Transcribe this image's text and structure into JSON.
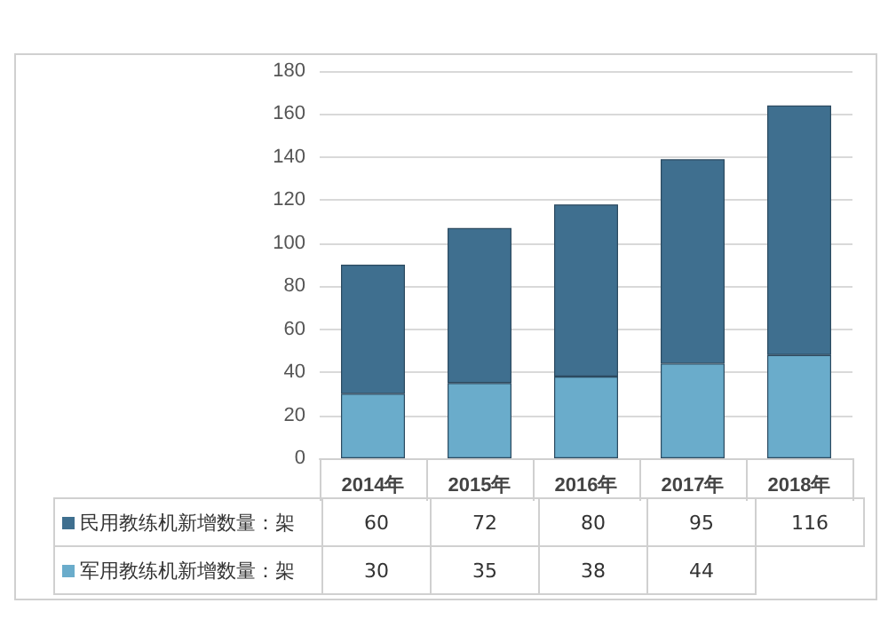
{
  "chart_data": {
    "type": "bar",
    "stacked": true,
    "categories": [
      "2014年",
      "2015年",
      "2016年",
      "2017年",
      "2018年"
    ],
    "series": [
      {
        "name": "军用教练机新增数量：架",
        "color": "#6aaccb",
        "values": [
          30,
          35,
          38,
          44,
          48
        ],
        "value_labels": [
          "30",
          "35",
          "38",
          "44",
          null
        ]
      },
      {
        "name": "民用教练机新增数量：架",
        "color": "#3f6f8f",
        "values": [
          60,
          72,
          80,
          95,
          116
        ],
        "value_labels": [
          "60",
          "72",
          "80",
          "95",
          "116"
        ]
      }
    ],
    "ylim": [
      0,
      180
    ],
    "yticks": [
      0,
      20,
      40,
      60,
      80,
      100,
      120,
      140,
      160,
      180
    ],
    "grid": "y",
    "legend": "bottom"
  }
}
